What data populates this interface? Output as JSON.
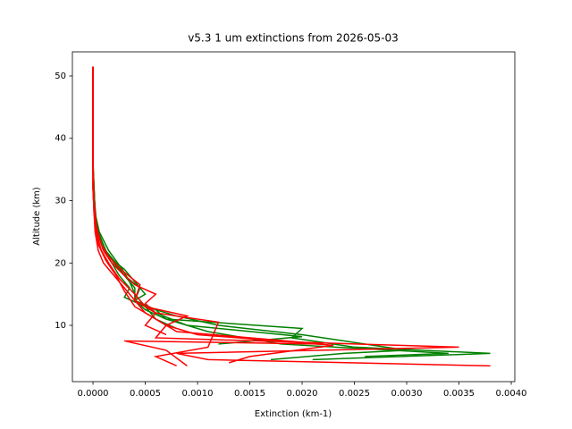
{
  "chart_data": {
    "type": "line",
    "title": "v5.3 1 um extinctions from 2026-05-03",
    "xlabel": "Extinction (km-1)",
    "ylabel": "Altitude (km)",
    "xlim": [
      -0.000197,
      0.004034
    ],
    "ylim": [
      0.97,
      53.87
    ],
    "xticks": [
      {
        "value": 0,
        "label": "0.0000"
      },
      {
        "value": 0.0005,
        "label": "0.0005"
      },
      {
        "value": 0.001,
        "label": "0.0010"
      },
      {
        "value": 0.0015,
        "label": "0.0015"
      },
      {
        "value": 0.002,
        "label": "0.0020"
      },
      {
        "value": 0.0025,
        "label": "0.0025"
      },
      {
        "value": 0.003,
        "label": "0.0030"
      },
      {
        "value": 0.0035,
        "label": "0.0035"
      },
      {
        "value": 0.004,
        "label": "0.0040"
      }
    ],
    "yticks": [
      10,
      20,
      30,
      40,
      50
    ],
    "series": [
      {
        "color": "#008000",
        "x": [
          0.0021,
          0.0038,
          0.0025,
          0.0019,
          0.002,
          0.0007,
          0.0006,
          0.0004,
          0.0004,
          0.0003,
          0.0002,
          0.00012,
          5e-05,
          2e-05,
          1e-05,
          0,
          0,
          0,
          0
        ],
        "values": [
          4.5,
          5.5,
          6.5,
          8,
          9.5,
          11,
          12.5,
          14,
          16,
          18,
          20,
          22,
          25,
          28,
          32,
          36,
          40,
          45,
          51.5
        ]
      },
      {
        "color": "#008000",
        "x": [
          0.0017,
          0.0024,
          0.003,
          0.002,
          0.0012,
          0.0008,
          0.0005,
          0.0003,
          0.00035,
          0.00025,
          0.00018,
          0.0001,
          4e-05,
          2e-05,
          1e-05,
          0,
          0,
          0,
          0
        ],
        "values": [
          4.5,
          5.5,
          6,
          8.5,
          10,
          11.5,
          13,
          14.5,
          16,
          18,
          20,
          22,
          25,
          28,
          32,
          36,
          40,
          45,
          51.5
        ]
      },
      {
        "color": "#008000",
        "x": [
          0.0026,
          0.0034,
          0.0018,
          0.0011,
          0.0007,
          0.0005,
          0.0004,
          0.00045,
          0.0003,
          0.00022,
          0.00012,
          5e-05,
          2e-05,
          1e-05,
          0,
          0,
          0,
          0
        ],
        "values": [
          5,
          5.5,
          7,
          9,
          11,
          12.5,
          14,
          16,
          18,
          20,
          22,
          25,
          28,
          32,
          36,
          40,
          45,
          51.5
        ]
      },
      {
        "color": "#008000",
        "x": [
          0.0012,
          0.002,
          0.0009,
          0.0006,
          0.0004,
          0.0005,
          0.0004,
          0.0003,
          0.00015,
          7e-05,
          3e-05,
          1e-05,
          0,
          0,
          0,
          0
        ],
        "values": [
          7,
          8.2,
          10,
          12,
          14,
          15,
          17,
          19,
          21,
          24,
          27,
          31,
          35,
          40,
          45,
          51.5
        ]
      },
      {
        "color": "#008000",
        "x": [
          0.0008,
          0.0006,
          0.0005,
          0.0004,
          0.00035,
          0.00028,
          0.00015,
          6e-05,
          2e-05,
          0,
          0,
          0,
          0
        ],
        "values": [
          9.5,
          11,
          13,
          15,
          17,
          19,
          22,
          25,
          28,
          32,
          40,
          45,
          51.5
        ]
      },
      {
        "color": "#ff0000",
        "x": [
          0.0038,
          0.0011,
          0.0008,
          0.0035,
          0.0006,
          0.0007,
          0.0005,
          0.0004,
          0.0003,
          0.0002,
          0.0001,
          5e-05,
          2e-05,
          1e-05,
          0,
          0,
          0,
          0,
          0
        ],
        "values": [
          3.5,
          4.5,
          5.5,
          6.5,
          8,
          10,
          12,
          14,
          16,
          18,
          20,
          22,
          25,
          28,
          32,
          36,
          40,
          45,
          51.5
        ]
      },
      {
        "color": "#ff0000",
        "x": [
          0.0013,
          0.0015,
          0.0023,
          0.001,
          0.0007,
          0.0009,
          0.0005,
          0.0004,
          0.00025,
          0.00015,
          8e-05,
          3e-05,
          1e-05,
          0,
          0,
          0,
          0
        ],
        "values": [
          4,
          5,
          6.8,
          8.5,
          10,
          11.5,
          13,
          15,
          17.5,
          20,
          22,
          25,
          28,
          32,
          40,
          45,
          51.5
        ]
      },
      {
        "color": "#ff0000",
        "x": [
          0.0008,
          0.0006,
          0.0011,
          0.0012,
          0.0006,
          0.0005,
          0.0006,
          0.0004,
          0.0003,
          0.00018,
          0.0001,
          4e-05,
          1e-05,
          0,
          0,
          0
        ],
        "values": [
          3.5,
          5,
          6.5,
          10.5,
          12,
          13.5,
          15,
          16.5,
          18,
          20,
          22,
          25,
          29,
          35,
          45,
          51.5
        ]
      },
      {
        "color": "#ff0000",
        "x": [
          0.0009,
          0.0007,
          0.0003,
          0.0022,
          0.0008,
          0.0006,
          0.0004,
          0.0003,
          0.00022,
          0.00012,
          5e-05,
          2e-05,
          0,
          0,
          0
        ],
        "values": [
          3.5,
          6,
          7.5,
          7,
          9,
          11,
          13,
          15.5,
          18,
          20.5,
          23,
          26,
          32,
          45,
          51.5
        ]
      },
      {
        "color": "#ff0000",
        "x": [
          0.0007,
          0.0005,
          0.0006,
          0.0004,
          0.00045,
          0.0003,
          0.00015,
          8e-05,
          3e-05,
          1e-05,
          0,
          0,
          0
        ],
        "values": [
          8.5,
          10,
          12,
          14,
          16.5,
          18.5,
          21,
          23,
          26,
          30,
          36,
          45,
          51.5
        ]
      }
    ]
  }
}
